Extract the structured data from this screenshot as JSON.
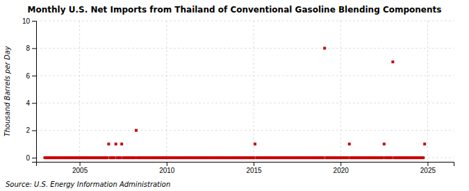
{
  "chart_data": {
    "type": "scatter",
    "title": "Monthly U.S. Net Imports from Thailand of Conventional Gasoline Blending Components",
    "y_label": "Thousand Barrels per Day",
    "source": "Source: U.S. Energy Information Administration",
    "xlim": [
      2002.5,
      2026.5
    ],
    "ylim": [
      -0.3,
      10
    ],
    "xticks": [
      2005,
      2010,
      2015,
      2020,
      2025
    ],
    "yticks": [
      0,
      2,
      4,
      6,
      8,
      10
    ],
    "grid": true,
    "color": "#cc0000",
    "marker": "square",
    "x": [
      2003.0,
      2003.08,
      2003.17,
      2003.25,
      2003.33,
      2003.42,
      2003.5,
      2003.58,
      2003.67,
      2003.75,
      2003.83,
      2003.92,
      2004.0,
      2004.08,
      2004.17,
      2004.25,
      2004.33,
      2004.42,
      2004.5,
      2004.58,
      2004.67,
      2004.75,
      2004.83,
      2004.92,
      2005.0,
      2005.08,
      2005.17,
      2005.25,
      2005.33,
      2005.42,
      2005.5,
      2005.58,
      2005.67,
      2005.75,
      2005.83,
      2005.92,
      2006.0,
      2006.08,
      2006.17,
      2006.25,
      2006.33,
      2006.42,
      2006.5,
      2006.58,
      2006.67,
      2006.75,
      2006.83,
      2006.92,
      2007.0,
      2007.08,
      2007.17,
      2007.25,
      2007.33,
      2007.42,
      2007.5,
      2007.58,
      2007.67,
      2007.75,
      2007.83,
      2007.92,
      2008.0,
      2008.08,
      2008.17,
      2008.25,
      2008.33,
      2008.42,
      2008.5,
      2008.58,
      2008.67,
      2008.75,
      2008.83,
      2008.92,
      2009.0,
      2009.08,
      2009.17,
      2009.25,
      2009.33,
      2009.42,
      2009.5,
      2009.58,
      2009.67,
      2009.75,
      2009.83,
      2009.92,
      2010.0,
      2010.08,
      2010.17,
      2010.25,
      2010.33,
      2010.42,
      2010.5,
      2010.58,
      2010.67,
      2010.75,
      2010.83,
      2010.92,
      2011.0,
      2011.08,
      2011.17,
      2011.25,
      2011.33,
      2011.42,
      2011.5,
      2011.58,
      2011.67,
      2011.75,
      2011.83,
      2011.92,
      2012.0,
      2012.08,
      2012.17,
      2012.25,
      2012.33,
      2012.42,
      2012.5,
      2012.58,
      2012.67,
      2012.75,
      2012.83,
      2012.92,
      2013.0,
      2013.08,
      2013.17,
      2013.25,
      2013.33,
      2013.42,
      2013.5,
      2013.58,
      2013.67,
      2013.75,
      2013.83,
      2013.92,
      2014.0,
      2014.08,
      2014.17,
      2014.25,
      2014.33,
      2014.42,
      2014.5,
      2014.58,
      2014.67,
      2014.75,
      2014.83,
      2014.92,
      2015.0,
      2015.08,
      2015.17,
      2015.25,
      2015.33,
      2015.42,
      2015.5,
      2015.58,
      2015.67,
      2015.75,
      2015.83,
      2015.92,
      2016.0,
      2016.08,
      2016.17,
      2016.25,
      2016.33,
      2016.42,
      2016.5,
      2016.58,
      2016.67,
      2016.75,
      2016.83,
      2016.92,
      2017.0,
      2017.08,
      2017.17,
      2017.25,
      2017.33,
      2017.42,
      2017.5,
      2017.58,
      2017.67,
      2017.75,
      2017.83,
      2017.92,
      2018.0,
      2018.08,
      2018.17,
      2018.25,
      2018.33,
      2018.42,
      2018.5,
      2018.58,
      2018.67,
      2018.75,
      2018.83,
      2018.92,
      2019.0,
      2019.08,
      2019.17,
      2019.25,
      2019.33,
      2019.42,
      2019.5,
      2019.58,
      2019.67,
      2019.75,
      2019.83,
      2019.92,
      2020.0,
      2020.08,
      2020.17,
      2020.25,
      2020.33,
      2020.42,
      2020.5,
      2020.58,
      2020.67,
      2020.75,
      2020.83,
      2020.92,
      2021.0,
      2021.08,
      2021.17,
      2021.25,
      2021.33,
      2021.42,
      2021.5,
      2021.58,
      2021.67,
      2021.75,
      2021.83,
      2021.92,
      2022.0,
      2022.08,
      2022.17,
      2022.25,
      2022.33,
      2022.42,
      2022.5,
      2022.58,
      2022.67,
      2022.75,
      2022.83,
      2022.92,
      2023.0,
      2023.08,
      2023.17,
      2023.25,
      2023.33,
      2023.42,
      2023.5,
      2023.58,
      2023.67,
      2023.75,
      2023.83,
      2023.92,
      2024.0,
      2024.08,
      2024.17,
      2024.25,
      2024.33,
      2024.42,
      2024.5,
      2024.58,
      2024.67,
      2024.75,
      2024.83
    ],
    "values": [
      0,
      0,
      0,
      0,
      0,
      0,
      0,
      0,
      0,
      0,
      0,
      0,
      0,
      0,
      0,
      0,
      0,
      0,
      0,
      0,
      0,
      0,
      0,
      0,
      0,
      0,
      0,
      0,
      0,
      0,
      0,
      0,
      0,
      0,
      0,
      0,
      0,
      0,
      0,
      0,
      0,
      0,
      0,
      0,
      1,
      0,
      0,
      0,
      0,
      1,
      0,
      0,
      0,
      1,
      0,
      0,
      0,
      0,
      0,
      0,
      0,
      0,
      0,
      2,
      0,
      0,
      0,
      0,
      0,
      0,
      0,
      0,
      0,
      0,
      0,
      0,
      0,
      0,
      0,
      0,
      0,
      0,
      0,
      0,
      0,
      0,
      0,
      0,
      0,
      0,
      0,
      0,
      0,
      0,
      0,
      0,
      0,
      0,
      0,
      0,
      0,
      0,
      0,
      0,
      0,
      0,
      0,
      0,
      0,
      0,
      0,
      0,
      0,
      0,
      0,
      0,
      0,
      0,
      0,
      0,
      0,
      0,
      0,
      0,
      0,
      0,
      0,
      0,
      0,
      0,
      0,
      0,
      0,
      0,
      0,
      0,
      0,
      0,
      0,
      0,
      0,
      0,
      0,
      0,
      0,
      1,
      0,
      0,
      0,
      0,
      0,
      0,
      0,
      0,
      0,
      0,
      0,
      0,
      0,
      0,
      0,
      0,
      0,
      0,
      0,
      0,
      0,
      0,
      0,
      0,
      0,
      0,
      0,
      0,
      0,
      0,
      0,
      0,
      0,
      0,
      0,
      0,
      0,
      0,
      0,
      0,
      0,
      0,
      0,
      0,
      0,
      0,
      0,
      8,
      0,
      0,
      0,
      0,
      0,
      0,
      0,
      0,
      0,
      0,
      0,
      0,
      0,
      0,
      0,
      0,
      1,
      0,
      0,
      0,
      0,
      0,
      0,
      0,
      0,
      0,
      0,
      0,
      0,
      0,
      0,
      0,
      0,
      0,
      0,
      0,
      0,
      0,
      0,
      0,
      1,
      0,
      0,
      0,
      0,
      0,
      7,
      0,
      0,
      0,
      0,
      0,
      0,
      0,
      0,
      0,
      0,
      0,
      0,
      0,
      0,
      0,
      0,
      0,
      0,
      0,
      0,
      0,
      1
    ]
  }
}
